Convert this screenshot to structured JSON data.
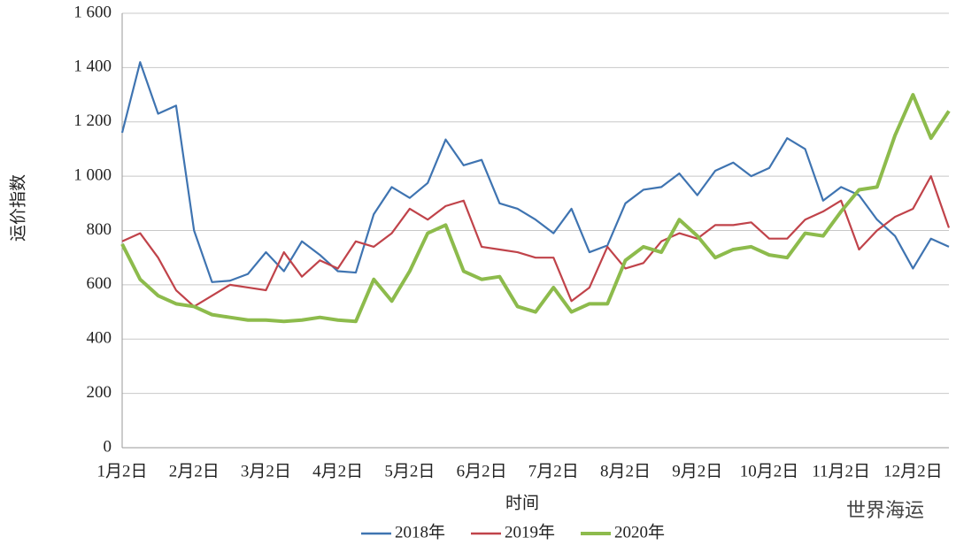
{
  "chart_data": {
    "type": "line",
    "y_label": "运价指数",
    "x_label": "时间",
    "watermark": "世界海运",
    "categories": [
      "1月2日",
      null,
      null,
      null,
      "2月2日",
      null,
      null,
      null,
      "3月2日",
      null,
      null,
      null,
      "4月2日",
      null,
      null,
      null,
      "5月2日",
      null,
      null,
      null,
      "6月2日",
      null,
      null,
      null,
      "7月2日",
      null,
      null,
      null,
      "8月2日",
      null,
      null,
      null,
      "9月2日",
      null,
      null,
      null,
      "10月2日",
      null,
      null,
      null,
      "11月2日",
      null,
      null,
      null,
      "12月2日",
      null,
      null
    ],
    "series": [
      {
        "name": "2018年",
        "color": "#3f74b1",
        "values": [
          1160,
          1420,
          1230,
          1260,
          800,
          610,
          615,
          640,
          720,
          650,
          760,
          710,
          650,
          645,
          860,
          960,
          920,
          975,
          1135,
          1040,
          1060,
          900,
          880,
          840,
          790,
          880,
          720,
          745,
          900,
          950,
          960,
          1010,
          930,
          1020,
          1050,
          1000,
          1030,
          1140,
          1100,
          910,
          960,
          930,
          840,
          780,
          660,
          770,
          740
        ]
      },
      {
        "name": "2019年",
        "color": "#c0434a",
        "values": [
          760,
          790,
          700,
          580,
          520,
          560,
          600,
          590,
          580,
          720,
          630,
          690,
          660,
          760,
          740,
          790,
          880,
          840,
          890,
          910,
          740,
          730,
          720,
          700,
          700,
          540,
          590,
          740,
          660,
          680,
          760,
          790,
          770,
          820,
          820,
          830,
          770,
          770,
          840,
          870,
          910,
          730,
          800,
          850,
          880,
          1000,
          810
        ]
      },
      {
        "name": "2020年",
        "color": "#8dbb4c",
        "values": [
          750,
          620,
          560,
          530,
          520,
          490,
          480,
          470,
          470,
          465,
          470,
          480,
          470,
          465,
          620,
          540,
          650,
          790,
          820,
          650,
          620,
          630,
          520,
          500,
          590,
          500,
          530,
          530,
          690,
          740,
          720,
          840,
          780,
          700,
          730,
          740,
          710,
          700,
          790,
          780,
          870,
          950,
          960,
          1150,
          1300,
          1140,
          1240
        ]
      }
    ],
    "ylim": [
      0,
      1600
    ],
    "yticks": [
      0,
      200,
      400,
      600,
      800,
      {
        "value": 1000,
        "label": "1 000"
      },
      {
        "value": 1200,
        "label": "1 200"
      },
      {
        "value": 1400,
        "label": "1 400"
      },
      {
        "value": 1600,
        "label": "1 600"
      }
    ],
    "grid": true
  }
}
